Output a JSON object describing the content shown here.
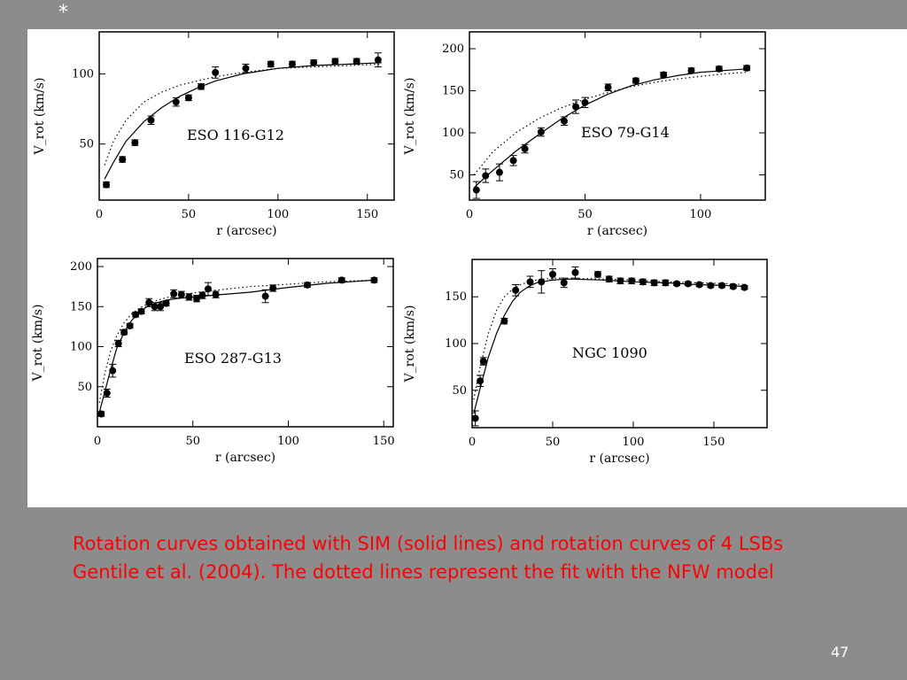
{
  "slide": {
    "marker": "*",
    "caption_lines": [
      "Rotation curves obtained with SIM (solid lines) and rotation  curves of 4 LSBs",
      "Gentile et al. (2004). The dotted lines represent the fit  with the NFW model"
    ],
    "page_number": "47",
    "caption_color": "#ff0000"
  },
  "chart_data": [
    {
      "type": "scatter",
      "title": "ESO 116-G12",
      "xlabel": "r (arcsec)",
      "ylabel": "V_rot (km/s)",
      "xlim": [
        0,
        165
      ],
      "ylim": [
        10,
        130
      ],
      "xticks": [
        0,
        50,
        100,
        150
      ],
      "yticks": [
        50,
        100
      ],
      "points": [
        {
          "x": 4,
          "y": 21,
          "err": 2
        },
        {
          "x": 13,
          "y": 39,
          "err": 2
        },
        {
          "x": 20,
          "y": 51,
          "err": 2
        },
        {
          "x": 29,
          "y": 67,
          "err": 3
        },
        {
          "x": 43,
          "y": 80,
          "err": 3
        },
        {
          "x": 50,
          "y": 83,
          "err": 2
        },
        {
          "x": 57,
          "y": 91,
          "err": 2
        },
        {
          "x": 65,
          "y": 101,
          "err": 4
        },
        {
          "x": 82,
          "y": 104,
          "err": 3
        },
        {
          "x": 96,
          "y": 107,
          "err": 2
        },
        {
          "x": 108,
          "y": 107,
          "err": 2
        },
        {
          "x": 120,
          "y": 108,
          "err": 2
        },
        {
          "x": 132,
          "y": 109,
          "err": 2
        },
        {
          "x": 144,
          "y": 109,
          "err": 2
        },
        {
          "x": 156,
          "y": 110,
          "err": 5
        }
      ],
      "series": [
        {
          "style": "solid",
          "x": [
            3,
            8,
            15,
            25,
            35,
            45,
            55,
            65,
            80,
            100,
            120,
            140,
            158
          ],
          "y": [
            25,
            37,
            52,
            66,
            76,
            84,
            90,
            95,
            100,
            104,
            106,
            107,
            108
          ]
        },
        {
          "style": "dotted",
          "x": [
            3,
            8,
            15,
            25,
            35,
            45,
            55,
            65,
            80,
            100,
            120,
            140,
            158
          ],
          "y": [
            35,
            52,
            67,
            80,
            87,
            92,
            95,
            98,
            101,
            104,
            105,
            106,
            107
          ]
        }
      ]
    },
    {
      "type": "scatter",
      "title": "ESO 79-G14",
      "xlabel": "r (arcsec)",
      "ylabel": "V_rot (km/s)",
      "xlim": [
        0,
        128
      ],
      "ylim": [
        20,
        220
      ],
      "xticks": [
        0,
        50,
        100
      ],
      "yticks": [
        50,
        100,
        150,
        200
      ],
      "points": [
        {
          "x": 3,
          "y": 32,
          "err": 10
        },
        {
          "x": 7,
          "y": 49,
          "err": 8
        },
        {
          "x": 13,
          "y": 53,
          "err": 10
        },
        {
          "x": 19,
          "y": 67,
          "err": 6
        },
        {
          "x": 24,
          "y": 81,
          "err": 5
        },
        {
          "x": 31,
          "y": 101,
          "err": 5
        },
        {
          "x": 41,
          "y": 114,
          "err": 5
        },
        {
          "x": 46,
          "y": 131,
          "err": 8
        },
        {
          "x": 50,
          "y": 136,
          "err": 6
        },
        {
          "x": 60,
          "y": 154,
          "err": 4
        },
        {
          "x": 72,
          "y": 162,
          "err": 3
        },
        {
          "x": 84,
          "y": 169,
          "err": 3
        },
        {
          "x": 96,
          "y": 174,
          "err": 3
        },
        {
          "x": 108,
          "y": 176,
          "err": 3
        },
        {
          "x": 120,
          "y": 177,
          "err": 3
        }
      ],
      "series": [
        {
          "style": "solid",
          "x": [
            2,
            10,
            20,
            30,
            40,
            50,
            60,
            70,
            80,
            90,
            100,
            110,
            120
          ],
          "y": [
            35,
            55,
            78,
            98,
            117,
            133,
            146,
            156,
            163,
            168,
            172,
            174,
            176
          ]
        },
        {
          "style": "dotted",
          "x": [
            2,
            10,
            20,
            30,
            40,
            50,
            60,
            70,
            80,
            90,
            100,
            110,
            120
          ],
          "y": [
            50,
            77,
            100,
            117,
            130,
            140,
            148,
            155,
            160,
            164,
            167,
            170,
            172
          ]
        }
      ]
    },
    {
      "type": "scatter",
      "title": "ESO 287-G13",
      "xlabel": "r (arcsec)",
      "ylabel": "V_rot (km/s)",
      "xlim": [
        0,
        155
      ],
      "ylim": [
        0,
        210
      ],
      "xticks": [
        0,
        50,
        100,
        150
      ],
      "yticks": [
        50,
        100,
        150,
        200
      ],
      "points": [
        {
          "x": 2,
          "y": 16,
          "err": 3
        },
        {
          "x": 5,
          "y": 42,
          "err": 5
        },
        {
          "x": 8,
          "y": 70,
          "err": 8
        },
        {
          "x": 11,
          "y": 104,
          "err": 4
        },
        {
          "x": 14,
          "y": 118,
          "err": 3
        },
        {
          "x": 17,
          "y": 126,
          "err": 3
        },
        {
          "x": 20,
          "y": 140,
          "err": 3
        },
        {
          "x": 23,
          "y": 144,
          "err": 3
        },
        {
          "x": 27,
          "y": 155,
          "err": 5
        },
        {
          "x": 30,
          "y": 150,
          "err": 5
        },
        {
          "x": 33,
          "y": 150,
          "err": 5
        },
        {
          "x": 36,
          "y": 154,
          "err": 3
        },
        {
          "x": 40,
          "y": 166,
          "err": 5
        },
        {
          "x": 44,
          "y": 165,
          "err": 4
        },
        {
          "x": 48,
          "y": 162,
          "err": 4
        },
        {
          "x": 52,
          "y": 160,
          "err": 4
        },
        {
          "x": 55,
          "y": 164,
          "err": 4
        },
        {
          "x": 58,
          "y": 172,
          "err": 8
        },
        {
          "x": 62,
          "y": 165,
          "err": 4
        },
        {
          "x": 88,
          "y": 163,
          "err": 8
        },
        {
          "x": 92,
          "y": 173,
          "err": 4
        },
        {
          "x": 110,
          "y": 177,
          "err": 3
        },
        {
          "x": 128,
          "y": 183,
          "err": 3
        },
        {
          "x": 145,
          "y": 183,
          "err": 3
        }
      ],
      "series": [
        {
          "style": "solid",
          "x": [
            1,
            4,
            7,
            10,
            14,
            18,
            22,
            26,
            30,
            36,
            42,
            50,
            60,
            80,
            100,
            120,
            145
          ],
          "y": [
            18,
            45,
            72,
            97,
            118,
            133,
            143,
            150,
            154,
            158,
            160,
            162,
            164,
            168,
            174,
            179,
            183
          ]
        },
        {
          "style": "dotted",
          "x": [
            1,
            4,
            7,
            10,
            14,
            18,
            22,
            26,
            30,
            36,
            42,
            50,
            60,
            80,
            100,
            120,
            145
          ],
          "y": [
            30,
            68,
            95,
            113,
            130,
            141,
            148,
            153,
            157,
            161,
            164,
            167,
            170,
            175,
            178,
            181,
            183
          ]
        }
      ]
    },
    {
      "type": "scatter",
      "title": "NGC 1090",
      "xlabel": "r (arcsec)",
      "ylabel": "V_rot (km/s)",
      "xlim": [
        0,
        183
      ],
      "ylim": [
        10,
        190
      ],
      "xticks": [
        0,
        50,
        100,
        150
      ],
      "yticks": [
        50,
        100,
        150
      ],
      "points": [
        {
          "x": 2,
          "y": 20,
          "err": 8
        },
        {
          "x": 5,
          "y": 60,
          "err": 6
        },
        {
          "x": 7,
          "y": 81,
          "err": 4
        },
        {
          "x": 20,
          "y": 124,
          "err": 3
        },
        {
          "x": 27,
          "y": 157,
          "err": 6
        },
        {
          "x": 36,
          "y": 166,
          "err": 6
        },
        {
          "x": 43,
          "y": 166,
          "err": 12
        },
        {
          "x": 50,
          "y": 174,
          "err": 6
        },
        {
          "x": 57,
          "y": 165,
          "err": 5
        },
        {
          "x": 64,
          "y": 176,
          "err": 6
        },
        {
          "x": 78,
          "y": 174,
          "err": 3
        },
        {
          "x": 85,
          "y": 169,
          "err": 3
        },
        {
          "x": 92,
          "y": 167,
          "err": 3
        },
        {
          "x": 99,
          "y": 167,
          "err": 3
        },
        {
          "x": 106,
          "y": 166,
          "err": 3
        },
        {
          "x": 113,
          "y": 165,
          "err": 3
        },
        {
          "x": 120,
          "y": 165,
          "err": 3
        },
        {
          "x": 127,
          "y": 164,
          "err": 2
        },
        {
          "x": 134,
          "y": 164,
          "err": 2
        },
        {
          "x": 141,
          "y": 163,
          "err": 2
        },
        {
          "x": 148,
          "y": 162,
          "err": 2
        },
        {
          "x": 155,
          "y": 162,
          "err": 2
        },
        {
          "x": 162,
          "y": 161,
          "err": 2
        },
        {
          "x": 169,
          "y": 160,
          "err": 2
        }
      ],
      "series": [
        {
          "style": "solid",
          "x": [
            1,
            5,
            10,
            15,
            20,
            25,
            30,
            35,
            40,
            50,
            60,
            80,
            100,
            120,
            140,
            160,
            170
          ],
          "y": [
            25,
            52,
            85,
            110,
            130,
            145,
            155,
            161,
            165,
            168,
            169,
            168,
            166,
            165,
            163,
            162,
            161
          ]
        },
        {
          "style": "dotted",
          "x": [
            1,
            5,
            10,
            15,
            20,
            25,
            30,
            35,
            40,
            50,
            60,
            80,
            100,
            120,
            140,
            160,
            170
          ],
          "y": [
            40,
            75,
            110,
            135,
            150,
            158,
            163,
            166,
            168,
            170,
            170,
            169,
            168,
            166,
            165,
            164,
            163
          ]
        }
      ]
    }
  ]
}
